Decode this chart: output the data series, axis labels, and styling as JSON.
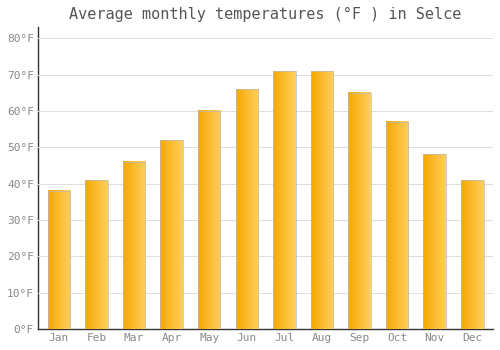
{
  "title": "Average monthly temperatures (°F ) in Selce",
  "months": [
    "Jan",
    "Feb",
    "Mar",
    "Apr",
    "May",
    "Jun",
    "Jul",
    "Aug",
    "Sep",
    "Oct",
    "Nov",
    "Dec"
  ],
  "values": [
    38,
    41,
    46,
    52,
    60,
    66,
    71,
    71,
    65,
    57,
    48,
    41
  ],
  "bar_color_left": "#F5A800",
  "bar_color_right": "#FFD060",
  "background_color": "#FFFFFF",
  "grid_color": "#DDDDDD",
  "ylim": [
    0,
    83
  ],
  "yticks": [
    0,
    10,
    20,
    30,
    40,
    50,
    60,
    70,
    80
  ],
  "ytick_labels": [
    "0°F",
    "10°F",
    "20°F",
    "30°F",
    "40°F",
    "50°F",
    "60°F",
    "70°F",
    "80°F"
  ],
  "title_fontsize": 11,
  "tick_fontsize": 8,
  "font_color": "#888888",
  "bar_width": 0.6,
  "bar_border_color": "#BBBBBB"
}
